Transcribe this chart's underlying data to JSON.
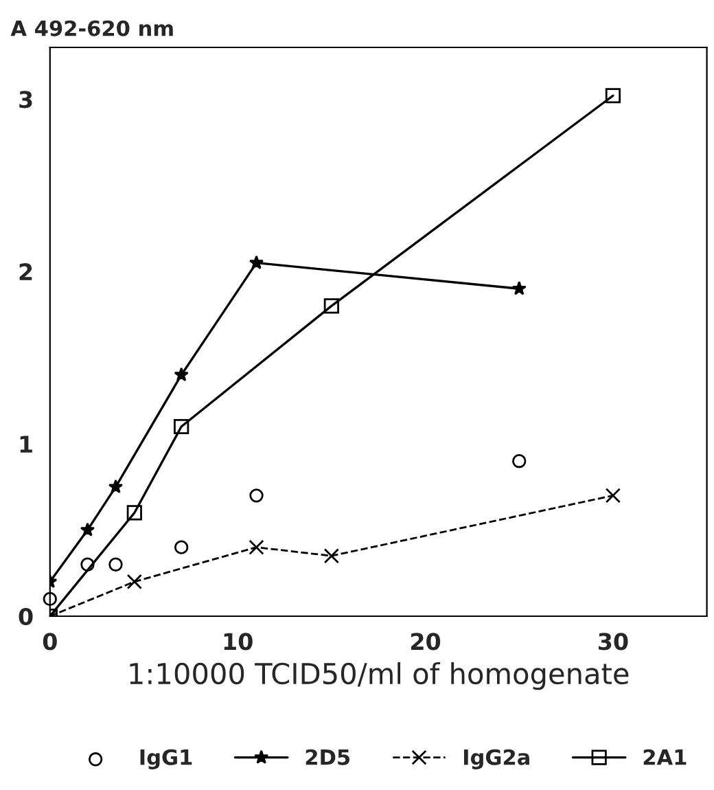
{
  "chart_data": {
    "type": "line",
    "ylabel": "A 492-620 nm",
    "xlabel": "1:10000 TCID50/ml of homogenate",
    "xlim": [
      0,
      35
    ],
    "xticks": [
      0,
      10,
      20,
      30
    ],
    "ylim": [
      0,
      3.3
    ],
    "yticks": [
      0,
      1,
      2,
      3
    ],
    "grid": false,
    "legend": "bottom",
    "series": [
      {
        "name": "IgG1",
        "type": "scatter",
        "color": "#000000",
        "marker": "circle",
        "x": [
          0,
          2,
          3.5,
          7,
          11,
          25
        ],
        "values": [
          0.1,
          0.3,
          0.3,
          0.4,
          0.7,
          0.9
        ]
      },
      {
        "name": "2D5",
        "color": "#000000",
        "marker": "star",
        "line_style": "solid",
        "x": [
          0,
          2,
          3.5,
          7,
          11,
          25
        ],
        "values": [
          0.2,
          0.5,
          0.75,
          1.4,
          2.05,
          1.9
        ]
      },
      {
        "name": "IgG2a",
        "color": "#000000",
        "marker": "cross",
        "line_style": "dashed",
        "x": [
          0,
          4.5,
          11,
          15,
          30
        ],
        "values": [
          0,
          0.2,
          0.4,
          0.35,
          0.7
        ]
      },
      {
        "name": "2A1",
        "color": "#000000",
        "marker": "square",
        "line_style": "solid",
        "x": [
          0,
          4.5,
          7,
          15,
          30
        ],
        "values": [
          0,
          0.6,
          1.1,
          1.8,
          3.02
        ]
      }
    ]
  }
}
